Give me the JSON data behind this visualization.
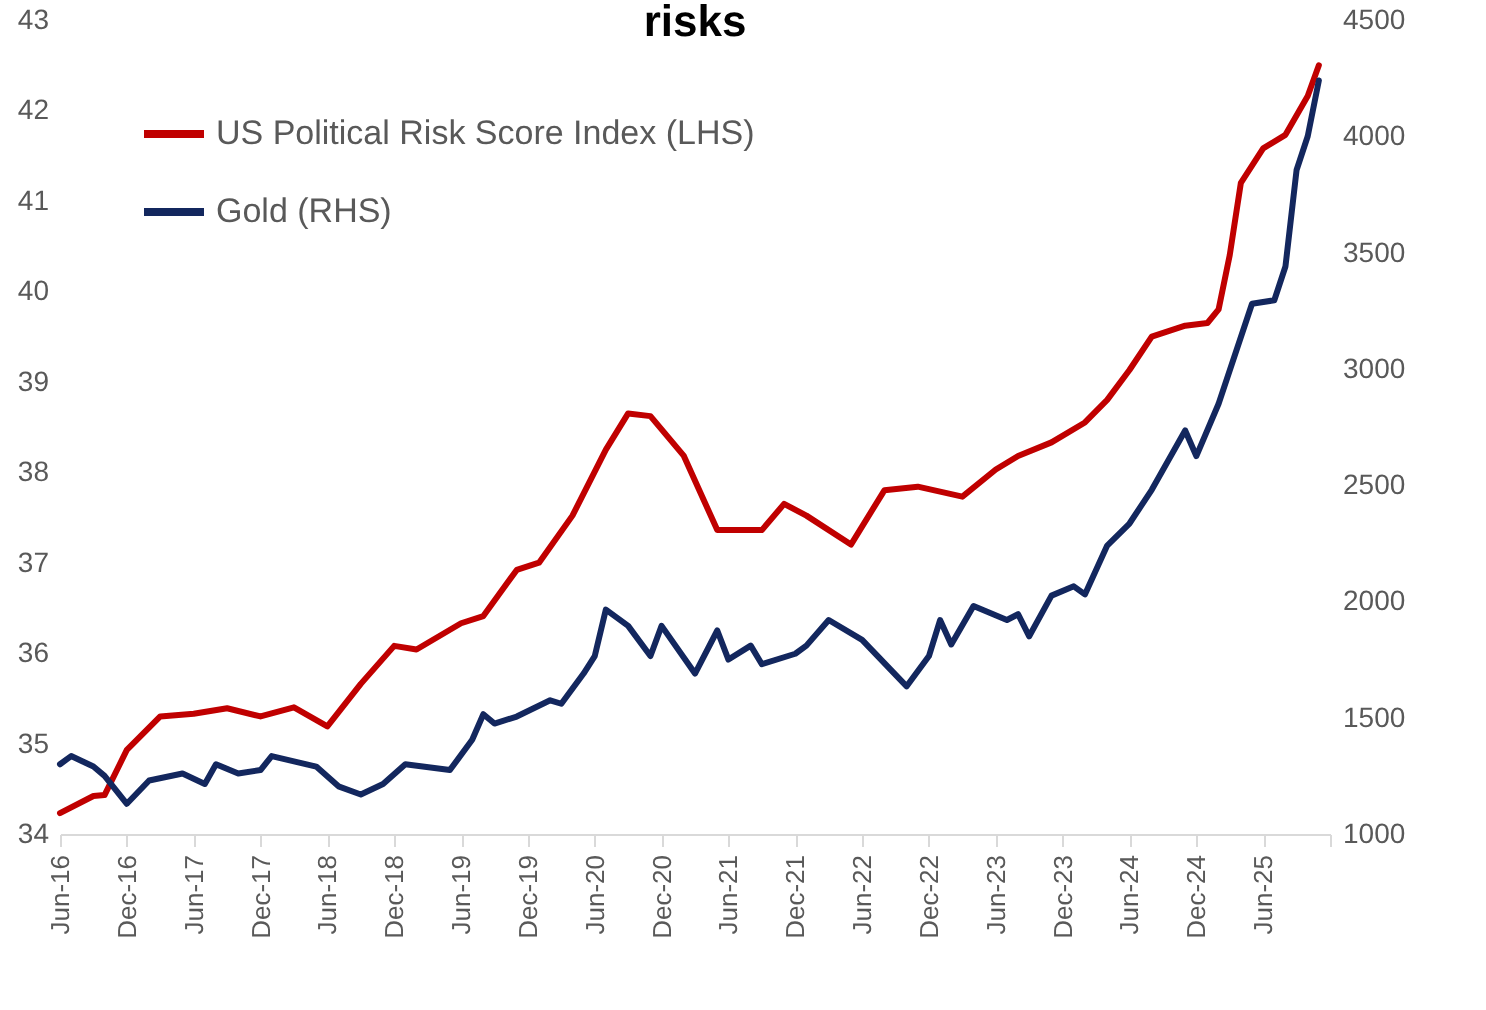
{
  "chart_data": {
    "type": "line",
    "title": "risks",
    "legend": "top left",
    "xlim": [
      "2016-06",
      "2025-12"
    ],
    "xticks": [
      {
        "value": "2016-06",
        "label": "Jun-16"
      },
      {
        "value": "2016-12",
        "label": "Dec-16"
      },
      {
        "value": "2017-06",
        "label": "Jun-17"
      },
      {
        "value": "2017-12",
        "label": "Dec-17"
      },
      {
        "value": "2018-06",
        "label": "Jun-18"
      },
      {
        "value": "2018-12",
        "label": "Dec-18"
      },
      {
        "value": "2019-06",
        "label": "Jun-19"
      },
      {
        "value": "2019-12",
        "label": "Dec-19"
      },
      {
        "value": "2020-06",
        "label": "Jun-20"
      },
      {
        "value": "2020-12",
        "label": "Dec-20"
      },
      {
        "value": "2021-06",
        "label": "Jun-21"
      },
      {
        "value": "2021-12",
        "label": "Dec-21"
      },
      {
        "value": "2022-06",
        "label": "Jun-22"
      },
      {
        "value": "2022-12",
        "label": "Dec-22"
      },
      {
        "value": "2023-06",
        "label": "Jun-23"
      },
      {
        "value": "2023-12",
        "label": "Dec-23"
      },
      {
        "value": "2024-06",
        "label": "Jun-24"
      },
      {
        "value": "2024-12",
        "label": "Dec-24"
      },
      {
        "value": "2025-06",
        "label": "Jun-25"
      },
      {
        "value": "2025-12",
        "label": null
      }
    ],
    "ylim": [
      34,
      43
    ],
    "yticks": [
      34,
      35,
      36,
      37,
      38,
      39,
      40,
      41,
      42,
      43
    ],
    "y2lim": [
      1000,
      4500
    ],
    "y2ticks": [
      1000,
      1500,
      2000,
      2500,
      3000,
      3500,
      4000,
      4500
    ],
    "series": [
      {
        "name": "US Political Risk Score Index (LHS)",
        "type": "line",
        "axis": "y",
        "color": "#c00000",
        "x": [
          "2016-06",
          "2016-09",
          "2016-10",
          "2016-12",
          "2017-03",
          "2017-06",
          "2017-09",
          "2017-12",
          "2018-03",
          "2018-06",
          "2018-09",
          "2018-12",
          "2019-02",
          "2019-06",
          "2019-08",
          "2019-11",
          "2020-01",
          "2020-04",
          "2020-07",
          "2020-09",
          "2020-11",
          "2021-02",
          "2021-05",
          "2021-09",
          "2021-11",
          "2022-01",
          "2022-05",
          "2022-08",
          "2022-11",
          "2023-03",
          "2023-06",
          "2023-08",
          "2023-11",
          "2024-02",
          "2024-04",
          "2024-06",
          "2024-08",
          "2024-11",
          "2025-01",
          "2025-02",
          "2025-03",
          "2025-04",
          "2025-06",
          "2025-08",
          "2025-10",
          "2025-11"
        ],
        "values": [
          34.23,
          34.42,
          34.43,
          34.93,
          35.3,
          35.33,
          35.39,
          35.3,
          35.4,
          35.19,
          35.66,
          36.08,
          36.04,
          36.33,
          36.41,
          36.92,
          37.0,
          37.52,
          38.25,
          38.65,
          38.62,
          38.18,
          37.36,
          37.36,
          37.65,
          37.52,
          37.2,
          37.8,
          37.84,
          37.73,
          38.03,
          38.18,
          38.33,
          38.55,
          38.8,
          39.13,
          39.5,
          39.62,
          39.65,
          39.8,
          40.4,
          41.2,
          41.58,
          41.73,
          42.16,
          42.5
        ]
      },
      {
        "name": "Gold (RHS)",
        "type": "line",
        "axis": "y2",
        "color": "#13275e",
        "x": [
          "2016-06",
          "2016-07",
          "2016-09",
          "2016-10",
          "2016-12",
          "2017-02",
          "2017-05",
          "2017-07",
          "2017-08",
          "2017-10",
          "2017-12",
          "2018-01",
          "2018-05",
          "2018-07",
          "2018-09",
          "2018-11",
          "2019-01",
          "2019-05",
          "2019-07",
          "2019-08",
          "2019-09",
          "2019-11",
          "2020-02",
          "2020-03",
          "2020-05",
          "2020-06",
          "2020-07",
          "2020-09",
          "2020-11",
          "2020-12",
          "2021-03",
          "2021-05",
          "2021-06",
          "2021-08",
          "2021-09",
          "2021-12",
          "2022-01",
          "2022-03",
          "2022-06",
          "2022-10",
          "2022-12",
          "2023-01",
          "2023-02",
          "2023-04",
          "2023-07",
          "2023-08",
          "2023-09",
          "2023-11",
          "2024-01",
          "2024-02",
          "2024-04",
          "2024-06",
          "2024-08",
          "2024-11",
          "2024-12",
          "2025-02",
          "2025-05",
          "2025-07",
          "2025-08",
          "2025-09",
          "2025-10",
          "2025-11"
        ],
        "values": [
          1300,
          1335,
          1290,
          1250,
          1130,
          1230,
          1260,
          1215,
          1300,
          1260,
          1275,
          1335,
          1290,
          1205,
          1170,
          1215,
          1300,
          1275,
          1405,
          1515,
          1475,
          1505,
          1575,
          1560,
          1690,
          1765,
          1965,
          1895,
          1765,
          1895,
          1690,
          1875,
          1750,
          1810,
          1730,
          1775,
          1810,
          1920,
          1835,
          1635,
          1765,
          1920,
          1815,
          1980,
          1920,
          1945,
          1850,
          2025,
          2065,
          2030,
          2240,
          2335,
          2480,
          2735,
          2625,
          2850,
          3280,
          3295,
          3440,
          3855,
          4000,
          4240
        ]
      }
    ]
  }
}
